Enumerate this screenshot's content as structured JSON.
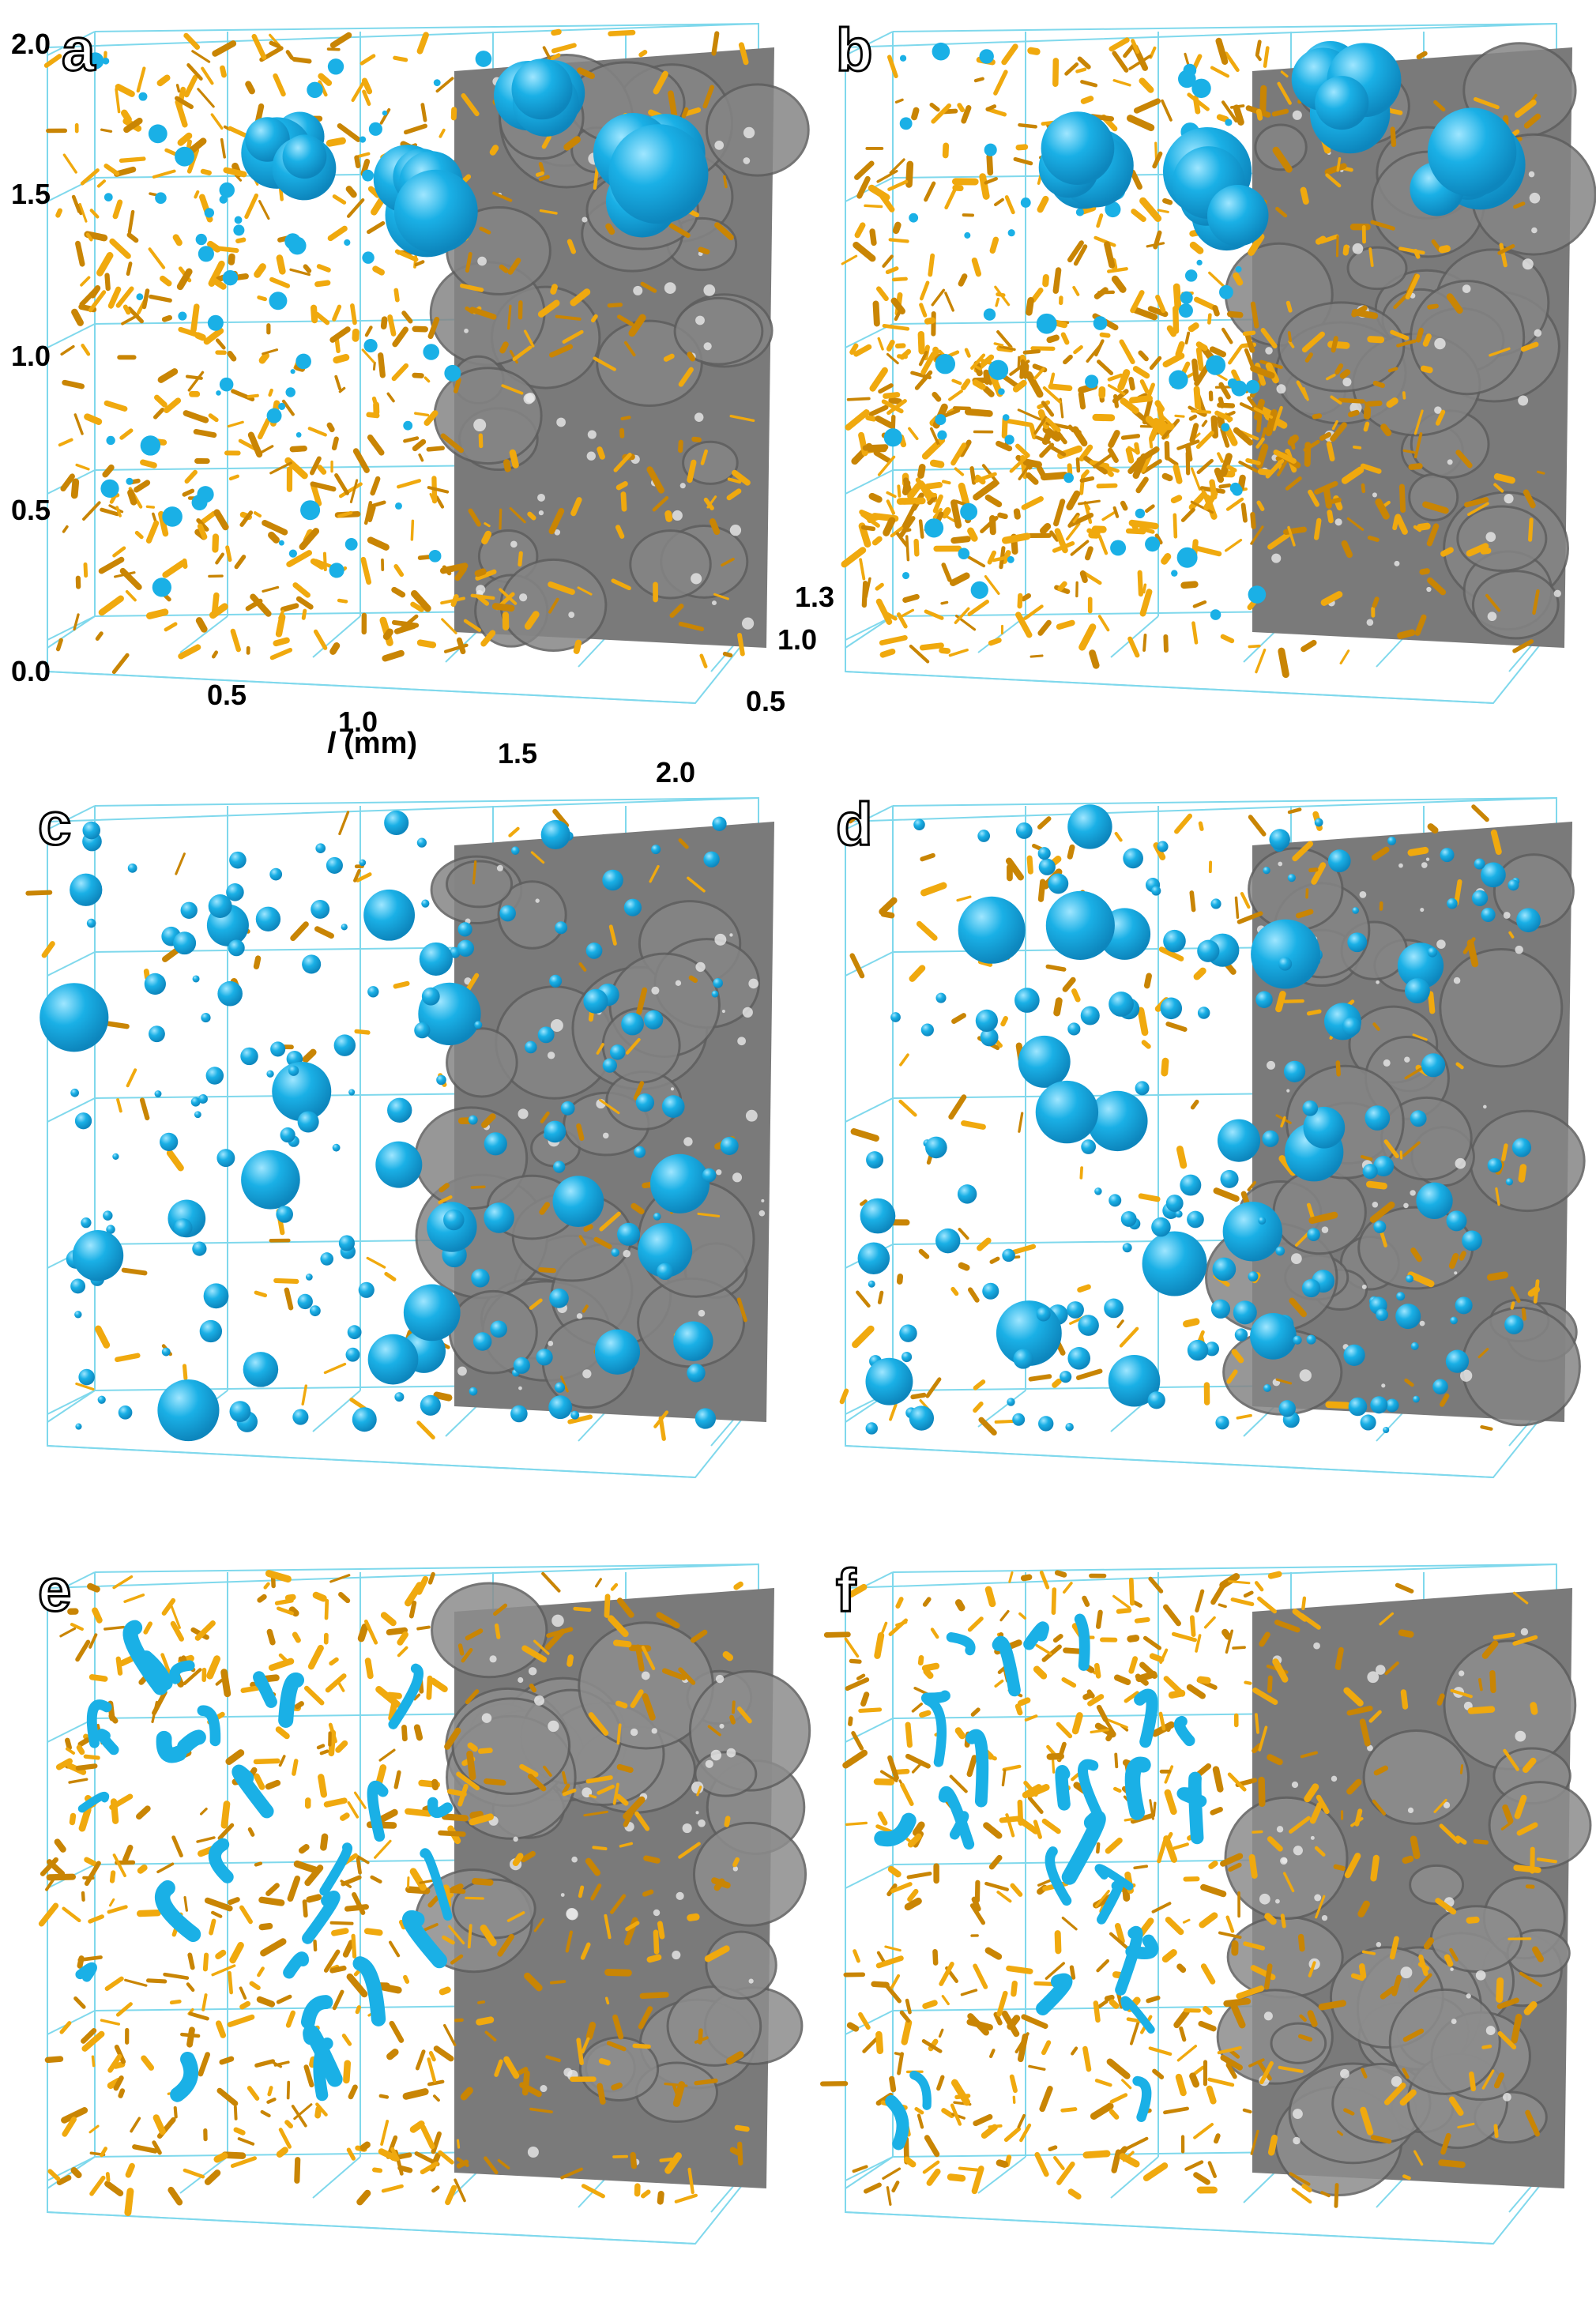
{
  "figure": {
    "panels": [
      {
        "label": "a",
        "style": "mixed",
        "blue_amount": "medium",
        "orange_amount": "high",
        "large_blue_blobs": true
      },
      {
        "label": "b",
        "style": "mixed",
        "blue_amount": "medium",
        "orange_amount": "very-high",
        "large_blue_blobs": true
      },
      {
        "label": "c",
        "style": "spheres",
        "blue_amount": "high",
        "orange_amount": "low",
        "large_blue_blobs": false
      },
      {
        "label": "d",
        "style": "spheres",
        "blue_amount": "high",
        "orange_amount": "medium",
        "large_blue_blobs": false
      },
      {
        "label": "e",
        "style": "fibres",
        "blue_amount": "low",
        "orange_amount": "high",
        "large_blue_blobs": false
      },
      {
        "label": "f",
        "style": "fibres",
        "blue_amount": "low",
        "orange_amount": "high",
        "large_blue_blobs": false
      }
    ],
    "axes": {
      "vertical_ticks": [
        "2.0",
        "1.5",
        "1.0",
        "0.5",
        "0.0"
      ],
      "horizontal_ticks": [
        "0.5",
        "1.0",
        "1.5",
        "2.0"
      ],
      "depth_ticks": [
        "1.3",
        "1.0",
        "0.5"
      ],
      "horizontal_title_symbol": "l",
      "horizontal_title_unit": "(mm)"
    },
    "colors": {
      "cage_line": "#7fd8ec",
      "blue_phase": "#1ab0e6",
      "blue_dark": "#0d86bd",
      "orange_phase": "#f0a90e",
      "orange_dark": "#c98504",
      "slice_gray": "#7a7a7a"
    }
  }
}
